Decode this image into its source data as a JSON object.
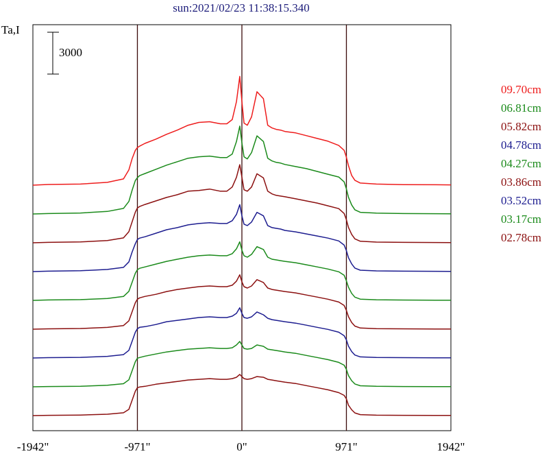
{
  "title": "sun:2021/02/23 11:38:15.340",
  "y_axis_label": "Ta,I",
  "scale_bar_label": "3000",
  "chart_data": {
    "type": "line",
    "title": "sun:2021/02/23 11:38:15.340",
    "ylabel": "Ta,I",
    "xlim": [
      -1942,
      1942
    ],
    "x_ticks": [
      {
        "value": -1942,
        "label": "-1942\""
      },
      {
        "value": -971,
        "label": "-971\""
      },
      {
        "value": 0,
        "label": "0\""
      },
      {
        "value": 971,
        "label": "971\""
      },
      {
        "value": 1942,
        "label": "1942\""
      }
    ],
    "vertical_lines": [
      -971,
      0,
      971
    ],
    "scale_bar": 3000,
    "x": [
      -1942,
      -1800,
      -1500,
      -1250,
      -1100,
      -1050,
      -1020,
      -990,
      -971,
      -950,
      -900,
      -800,
      -700,
      -600,
      -500,
      -400,
      -300,
      -200,
      -140,
      -90,
      -50,
      -20,
      0,
      20,
      50,
      90,
      140,
      200,
      240,
      280,
      320,
      360,
      400,
      500,
      600,
      700,
      800,
      900,
      950,
      971,
      990,
      1020,
      1050,
      1100,
      1250,
      1500,
      1800,
      1942
    ],
    "series": [
      {
        "name": "09.70cm",
        "color": "#ee1c1c",
        "values": [
          0,
          50,
          80,
          200,
          450,
          1100,
          1900,
          2500,
          2700,
          2800,
          3000,
          3300,
          3650,
          3950,
          4300,
          4500,
          4550,
          4400,
          4400,
          4700,
          6000,
          7800,
          6000,
          4450,
          4300,
          4900,
          6700,
          6200,
          4300,
          4100,
          4000,
          3950,
          3850,
          3750,
          3550,
          3350,
          3150,
          2850,
          2500,
          2000,
          1400,
          700,
          350,
          150,
          80,
          40,
          30,
          20
        ]
      },
      {
        "name": "06.81cm",
        "color": "#1a8a1a",
        "values": [
          0,
          30,
          70,
          180,
          400,
          900,
          1700,
          2400,
          2600,
          2750,
          2900,
          3200,
          3500,
          3750,
          4000,
          4100,
          4150,
          4050,
          4050,
          4300,
          5200,
          6300,
          5100,
          4100,
          3950,
          4400,
          5600,
          5200,
          4000,
          3800,
          3700,
          3650,
          3550,
          3400,
          3250,
          3050,
          2850,
          2650,
          2300,
          1800,
          1200,
          650,
          300,
          120,
          60,
          30,
          20,
          10
        ]
      },
      {
        "name": "05.82cm",
        "color": "#8b0f0f",
        "values": [
          0,
          30,
          60,
          160,
          350,
          800,
          1500,
          2200,
          2500,
          2600,
          2750,
          3000,
          3250,
          3450,
          3700,
          3750,
          3850,
          3700,
          3700,
          4000,
          4700,
          5600,
          4700,
          3800,
          3700,
          4000,
          4950,
          4650,
          3700,
          3500,
          3400,
          3350,
          3300,
          3150,
          3000,
          2850,
          2650,
          2450,
          2100,
          1650,
          1100,
          600,
          280,
          110,
          50,
          30,
          20,
          10
        ]
      },
      {
        "name": "04.78cm",
        "color": "#1c1c8f",
        "values": [
          0,
          30,
          60,
          150,
          300,
          700,
          1400,
          2000,
          2300,
          2400,
          2500,
          2750,
          3000,
          3150,
          3350,
          3450,
          3500,
          3450,
          3450,
          3650,
          4100,
          4800,
          4000,
          3400,
          3300,
          3550,
          4250,
          4000,
          3300,
          3150,
          3100,
          3050,
          2950,
          2850,
          2700,
          2550,
          2400,
          2200,
          1900,
          1500,
          1000,
          550,
          250,
          100,
          50,
          30,
          20,
          10
        ]
      },
      {
        "name": "04.27cm",
        "color": "#1a8a1a",
        "values": [
          0,
          30,
          55,
          140,
          280,
          650,
          1300,
          1950,
          2200,
          2300,
          2400,
          2600,
          2800,
          2950,
          3100,
          3200,
          3250,
          3200,
          3200,
          3350,
          3700,
          4200,
          3600,
          3200,
          3100,
          3300,
          3850,
          3650,
          3100,
          2950,
          2900,
          2850,
          2800,
          2700,
          2550,
          2400,
          2250,
          2050,
          1800,
          1400,
          950,
          500,
          230,
          90,
          45,
          25,
          15,
          10
        ]
      },
      {
        "name": "03.86cm",
        "color": "#8b0f0f",
        "values": [
          0,
          25,
          50,
          130,
          260,
          600,
          1250,
          1900,
          2150,
          2250,
          2350,
          2500,
          2700,
          2850,
          2950,
          3050,
          3100,
          3050,
          3050,
          3150,
          3450,
          3900,
          3400,
          3050,
          2950,
          3100,
          3550,
          3350,
          2950,
          2850,
          2800,
          2750,
          2700,
          2600,
          2450,
          2300,
          2150,
          1950,
          1700,
          1350,
          900,
          480,
          220,
          85,
          40,
          25,
          15,
          10
        ]
      },
      {
        "name": "03.52cm",
        "color": "#1c1c8f",
        "values": [
          0,
          25,
          45,
          120,
          240,
          550,
          1200,
          1850,
          2100,
          2200,
          2250,
          2400,
          2600,
          2700,
          2800,
          2900,
          2950,
          2900,
          2900,
          3000,
          3200,
          3600,
          3200,
          2900,
          2850,
          2950,
          3300,
          3100,
          2850,
          2750,
          2700,
          2650,
          2600,
          2500,
          2350,
          2200,
          2050,
          1850,
          1600,
          1300,
          850,
          460,
          210,
          80,
          40,
          25,
          15,
          10
        ]
      },
      {
        "name": "03.17cm",
        "color": "#1a8a1a",
        "values": [
          0,
          20,
          40,
          110,
          220,
          500,
          1150,
          1800,
          2050,
          2100,
          2200,
          2350,
          2500,
          2600,
          2700,
          2750,
          2800,
          2750,
          2750,
          2800,
          3000,
          3250,
          3000,
          2750,
          2700,
          2750,
          3000,
          2900,
          2700,
          2650,
          2600,
          2550,
          2500,
          2400,
          2250,
          2100,
          1950,
          1750,
          1550,
          1250,
          800,
          440,
          200,
          75,
          35,
          20,
          10,
          10
        ]
      },
      {
        "name": "02.78cm",
        "color": "#8b0f0f",
        "values": [
          0,
          20,
          40,
          100,
          200,
          450,
          1100,
          1750,
          2000,
          2050,
          2100,
          2250,
          2350,
          2450,
          2550,
          2600,
          2650,
          2600,
          2600,
          2650,
          2750,
          2950,
          2800,
          2650,
          2600,
          2650,
          2800,
          2750,
          2600,
          2550,
          2500,
          2450,
          2400,
          2300,
          2150,
          2000,
          1850,
          1650,
          1450,
          1200,
          750,
          420,
          190,
          70,
          30,
          20,
          10,
          10
        ]
      }
    ]
  }
}
